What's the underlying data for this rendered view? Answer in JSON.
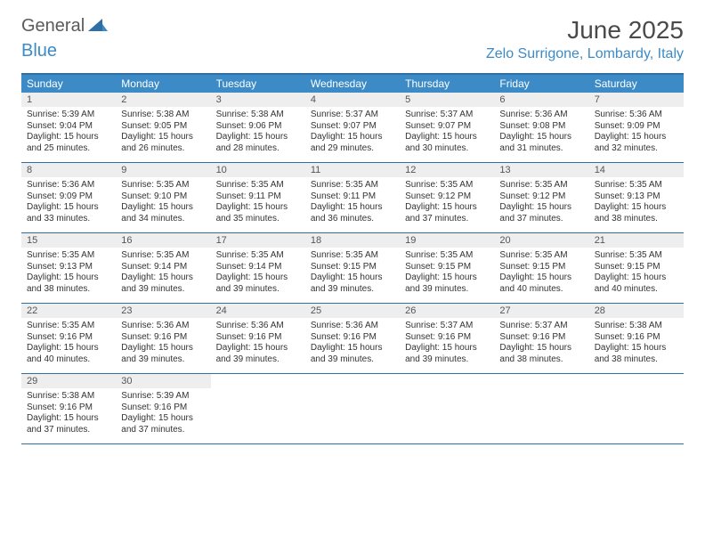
{
  "brand": {
    "part1": "General",
    "part2": "Blue"
  },
  "title": "June 2025",
  "location": "Zelo Surrigone, Lombardy, Italy",
  "colors": {
    "header_bar": "#3c8bc6",
    "border": "#2f6fa3",
    "daynum_bg": "#eeeeee",
    "text": "#333333",
    "title_text": "#4a4a4a"
  },
  "dow": [
    "Sunday",
    "Monday",
    "Tuesday",
    "Wednesday",
    "Thursday",
    "Friday",
    "Saturday"
  ],
  "days": [
    {
      "n": 1,
      "sr": "5:39 AM",
      "ss": "9:04 PM",
      "dl": "15 hours and 25 minutes."
    },
    {
      "n": 2,
      "sr": "5:38 AM",
      "ss": "9:05 PM",
      "dl": "15 hours and 26 minutes."
    },
    {
      "n": 3,
      "sr": "5:38 AM",
      "ss": "9:06 PM",
      "dl": "15 hours and 28 minutes."
    },
    {
      "n": 4,
      "sr": "5:37 AM",
      "ss": "9:07 PM",
      "dl": "15 hours and 29 minutes."
    },
    {
      "n": 5,
      "sr": "5:37 AM",
      "ss": "9:07 PM",
      "dl": "15 hours and 30 minutes."
    },
    {
      "n": 6,
      "sr": "5:36 AM",
      "ss": "9:08 PM",
      "dl": "15 hours and 31 minutes."
    },
    {
      "n": 7,
      "sr": "5:36 AM",
      "ss": "9:09 PM",
      "dl": "15 hours and 32 minutes."
    },
    {
      "n": 8,
      "sr": "5:36 AM",
      "ss": "9:09 PM",
      "dl": "15 hours and 33 minutes."
    },
    {
      "n": 9,
      "sr": "5:35 AM",
      "ss": "9:10 PM",
      "dl": "15 hours and 34 minutes."
    },
    {
      "n": 10,
      "sr": "5:35 AM",
      "ss": "9:11 PM",
      "dl": "15 hours and 35 minutes."
    },
    {
      "n": 11,
      "sr": "5:35 AM",
      "ss": "9:11 PM",
      "dl": "15 hours and 36 minutes."
    },
    {
      "n": 12,
      "sr": "5:35 AM",
      "ss": "9:12 PM",
      "dl": "15 hours and 37 minutes."
    },
    {
      "n": 13,
      "sr": "5:35 AM",
      "ss": "9:12 PM",
      "dl": "15 hours and 37 minutes."
    },
    {
      "n": 14,
      "sr": "5:35 AM",
      "ss": "9:13 PM",
      "dl": "15 hours and 38 minutes."
    },
    {
      "n": 15,
      "sr": "5:35 AM",
      "ss": "9:13 PM",
      "dl": "15 hours and 38 minutes."
    },
    {
      "n": 16,
      "sr": "5:35 AM",
      "ss": "9:14 PM",
      "dl": "15 hours and 39 minutes."
    },
    {
      "n": 17,
      "sr": "5:35 AM",
      "ss": "9:14 PM",
      "dl": "15 hours and 39 minutes."
    },
    {
      "n": 18,
      "sr": "5:35 AM",
      "ss": "9:15 PM",
      "dl": "15 hours and 39 minutes."
    },
    {
      "n": 19,
      "sr": "5:35 AM",
      "ss": "9:15 PM",
      "dl": "15 hours and 39 minutes."
    },
    {
      "n": 20,
      "sr": "5:35 AM",
      "ss": "9:15 PM",
      "dl": "15 hours and 40 minutes."
    },
    {
      "n": 21,
      "sr": "5:35 AM",
      "ss": "9:15 PM",
      "dl": "15 hours and 40 minutes."
    },
    {
      "n": 22,
      "sr": "5:35 AM",
      "ss": "9:16 PM",
      "dl": "15 hours and 40 minutes."
    },
    {
      "n": 23,
      "sr": "5:36 AM",
      "ss": "9:16 PM",
      "dl": "15 hours and 39 minutes."
    },
    {
      "n": 24,
      "sr": "5:36 AM",
      "ss": "9:16 PM",
      "dl": "15 hours and 39 minutes."
    },
    {
      "n": 25,
      "sr": "5:36 AM",
      "ss": "9:16 PM",
      "dl": "15 hours and 39 minutes."
    },
    {
      "n": 26,
      "sr": "5:37 AM",
      "ss": "9:16 PM",
      "dl": "15 hours and 39 minutes."
    },
    {
      "n": 27,
      "sr": "5:37 AM",
      "ss": "9:16 PM",
      "dl": "15 hours and 38 minutes."
    },
    {
      "n": 28,
      "sr": "5:38 AM",
      "ss": "9:16 PM",
      "dl": "15 hours and 38 minutes."
    },
    {
      "n": 29,
      "sr": "5:38 AM",
      "ss": "9:16 PM",
      "dl": "15 hours and 37 minutes."
    },
    {
      "n": 30,
      "sr": "5:39 AM",
      "ss": "9:16 PM",
      "dl": "15 hours and 37 minutes."
    }
  ],
  "labels": {
    "sunrise": "Sunrise:",
    "sunset": "Sunset:",
    "daylight": "Daylight:"
  },
  "layout": {
    "start_dow": 0,
    "total_cells": 35
  }
}
